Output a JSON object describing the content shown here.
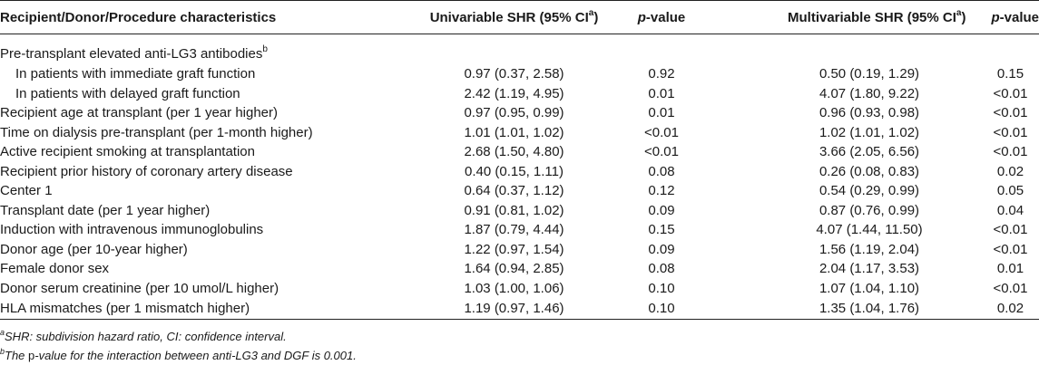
{
  "table": {
    "headers": {
      "characteristics": "Recipient/Donor/Procedure characteristics",
      "univariable_prefix": "Univariable SHR (95% CI",
      "univariable_sup": "a",
      "univariable_suffix": ")",
      "p_value": "p",
      "p_value_suffix": "-value",
      "multivariable_prefix": "Multivariable SHR (95% CI",
      "multivariable_sup": "a",
      "multivariable_suffix": ")",
      "p_value2": "p",
      "p_value2_suffix": "-value"
    },
    "group": {
      "label": "Pre-transplant elevated anti-LG3 antibodies",
      "sup": "b"
    },
    "rows": [
      {
        "label": "In patients with immediate graft function",
        "uni": "0.97 (0.37, 2.58)",
        "p1": "0.92",
        "multi": "0.50 (0.19, 1.29)",
        "p2": "0.15"
      },
      {
        "label": "In patients with delayed graft function",
        "uni": "2.42 (1.19, 4.95)",
        "p1": "0.01",
        "multi": "4.07 (1.80, 9.22)",
        "p2": "<0.01"
      },
      {
        "label": "Recipient age at transplant (per 1 year higher)",
        "uni": "0.97 (0.95, 0.99)",
        "p1": "0.01",
        "multi": "0.96 (0.93, 0.98)",
        "p2": "<0.01"
      },
      {
        "label": "Time on dialysis pre-transplant (per 1-month higher)",
        "uni": "1.01 (1.01, 1.02)",
        "p1": "<0.01",
        "multi": "1.02 (1.01, 1.02)",
        "p2": "<0.01"
      },
      {
        "label": "Active recipient smoking at transplantation",
        "uni": "2.68 (1.50, 4.80)",
        "p1": "<0.01",
        "multi": "3.66 (2.05, 6.56)",
        "p2": "<0.01"
      },
      {
        "label": "Recipient prior history of coronary artery disease",
        "uni": "0.40 (0.15, 1.11)",
        "p1": "0.08",
        "multi": "0.26 (0.08, 0.83)",
        "p2": "0.02"
      },
      {
        "label": "Center 1",
        "uni": "0.64 (0.37, 1.12)",
        "p1": "0.12",
        "multi": "0.54 (0.29, 0.99)",
        "p2": "0.05"
      },
      {
        "label": "Transplant date (per 1 year higher)",
        "uni": "0.91 (0.81, 1.02)",
        "p1": "0.09",
        "multi": "0.87 (0.76, 0.99)",
        "p2": "0.04"
      },
      {
        "label": "Induction with intravenous immunoglobulins",
        "uni": "1.87 (0.79, 4.44)",
        "p1": "0.15",
        "multi": "4.07 (1.44, 11.50)",
        "p2": "<0.01"
      },
      {
        "label": "Donor age (per 10-year higher)",
        "uni": "1.22 (0.97, 1.54)",
        "p1": "0.09",
        "multi": "1.56 (1.19, 2.04)",
        "p2": "<0.01"
      },
      {
        "label": "Female donor sex",
        "uni": "1.64 (0.94, 2.85)",
        "p1": "0.08",
        "multi": "2.04 (1.17, 3.53)",
        "p2": "0.01"
      },
      {
        "label": "Donor serum creatinine (per 10 umol/L higher)",
        "uni": "1.03 (1.00, 1.06)",
        "p1": "0.10",
        "multi": "1.07 (1.04, 1.10)",
        "p2": "<0.01"
      },
      {
        "label": "HLA mismatches (per 1 mismatch higher)",
        "uni": "1.19 (0.97, 1.46)",
        "p1": "0.10",
        "multi": "1.35 (1.04, 1.76)",
        "p2": "0.02"
      }
    ]
  },
  "footnotes": {
    "a_sup": "a",
    "a_text": "SHR: subdivision hazard ratio, CI: confidence interval.",
    "b_sup": "b",
    "b_text_pre": "The ",
    "b_text_p": "p",
    "b_text_post": "-value for the interaction between anti-LG3 and DGF is 0.001."
  }
}
